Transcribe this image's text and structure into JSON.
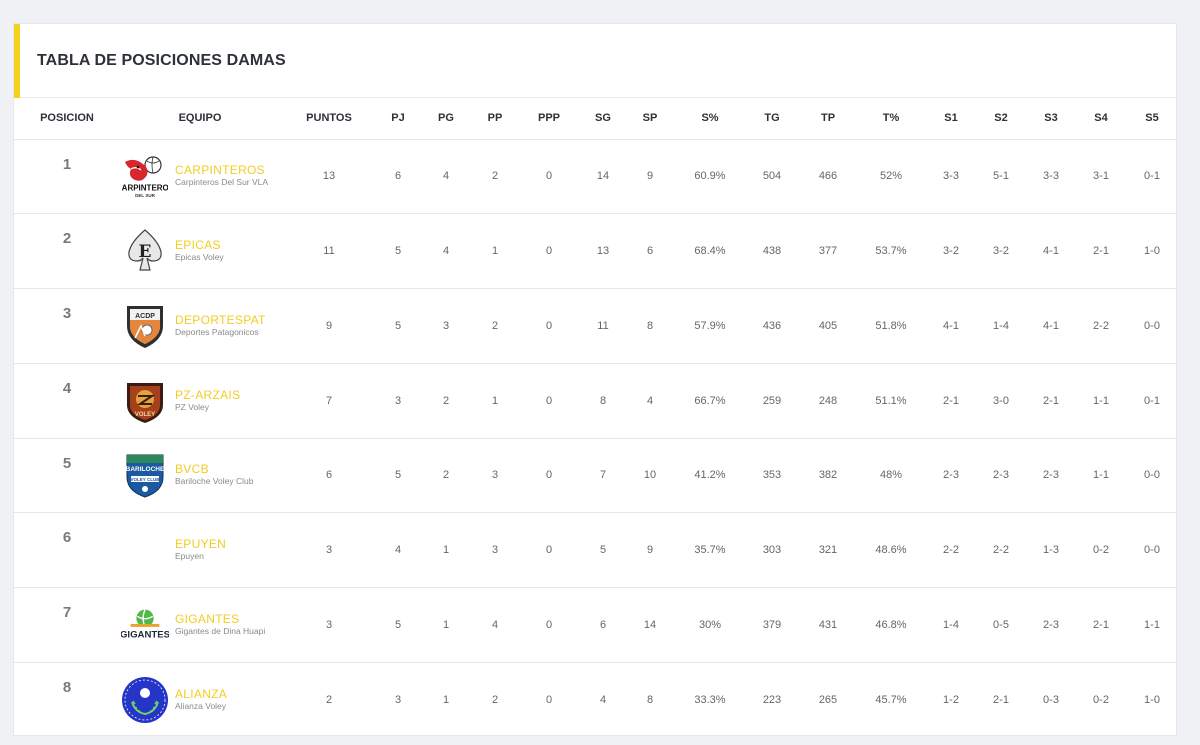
{
  "header": {
    "title": "TABLA DE POSICIONES DAMAS"
  },
  "colors": {
    "accent": "#f3d21b",
    "team_name": "#f2cd22"
  },
  "columns": [
    "POSICION",
    "EQUIPO",
    "PUNTOS",
    "PJ",
    "PG",
    "PP",
    "PPP",
    "SG",
    "SP",
    "S%",
    "TG",
    "TP",
    "T%",
    "S1",
    "S2",
    "S3",
    "S4",
    "S5"
  ],
  "rows": [
    {
      "pos": "1",
      "name": "CARPINTEROS",
      "sub": "Carpinteros Del Sur VLA",
      "logo": "carpinteros-logo",
      "stats": [
        "13",
        "6",
        "4",
        "2",
        "0",
        "14",
        "9",
        "60.9%",
        "504",
        "466",
        "52%",
        "3-3",
        "5-1",
        "3-3",
        "3-1",
        "0-1"
      ]
    },
    {
      "pos": "2",
      "name": "EPICAS",
      "sub": "Epicas Voley",
      "logo": "epicas-logo",
      "stats": [
        "11",
        "5",
        "4",
        "1",
        "0",
        "13",
        "6",
        "68.4%",
        "438",
        "377",
        "53.7%",
        "3-2",
        "3-2",
        "4-1",
        "2-1",
        "1-0"
      ]
    },
    {
      "pos": "3",
      "name": "DEPORTESPAT",
      "sub": "Deportes Patagonicos",
      "logo": "deportespat-logo",
      "stats": [
        "9",
        "5",
        "3",
        "2",
        "0",
        "11",
        "8",
        "57.9%",
        "436",
        "405",
        "51.8%",
        "4-1",
        "1-4",
        "4-1",
        "2-2",
        "0-0"
      ]
    },
    {
      "pos": "4",
      "name": "PZ-ARZAIS",
      "sub": "PZ Voley",
      "logo": "pz-voley-logo",
      "stats": [
        "7",
        "3",
        "2",
        "1",
        "0",
        "8",
        "4",
        "66.7%",
        "259",
        "248",
        "51.1%",
        "2-1",
        "3-0",
        "2-1",
        "1-1",
        "0-1"
      ]
    },
    {
      "pos": "5",
      "name": "BVCB",
      "sub": "Bariloche Voley Club",
      "logo": "bariloche-logo",
      "stats": [
        "6",
        "5",
        "2",
        "3",
        "0",
        "7",
        "10",
        "41.2%",
        "353",
        "382",
        "48%",
        "2-3",
        "2-3",
        "2-3",
        "1-1",
        "0-0"
      ]
    },
    {
      "pos": "6",
      "name": "EPUYEN",
      "sub": "Epuyen",
      "logo": "",
      "stats": [
        "3",
        "4",
        "1",
        "3",
        "0",
        "5",
        "9",
        "35.7%",
        "303",
        "321",
        "48.6%",
        "2-2",
        "2-2",
        "1-3",
        "0-2",
        "0-0"
      ]
    },
    {
      "pos": "7",
      "name": "GIGANTES",
      "sub": "Gigantes de Dina Huapi",
      "logo": "gigantes-logo",
      "stats": [
        "3",
        "5",
        "1",
        "4",
        "0",
        "6",
        "14",
        "30%",
        "379",
        "431",
        "46.8%",
        "1-4",
        "0-5",
        "2-3",
        "2-1",
        "1-1"
      ]
    },
    {
      "pos": "8",
      "name": "ALIANZA",
      "sub": "Alianza Voley",
      "logo": "alianza-logo",
      "stats": [
        "2",
        "3",
        "1",
        "2",
        "0",
        "4",
        "8",
        "33.3%",
        "223",
        "265",
        "45.7%",
        "1-2",
        "2-1",
        "0-3",
        "0-2",
        "1-0"
      ]
    }
  ]
}
